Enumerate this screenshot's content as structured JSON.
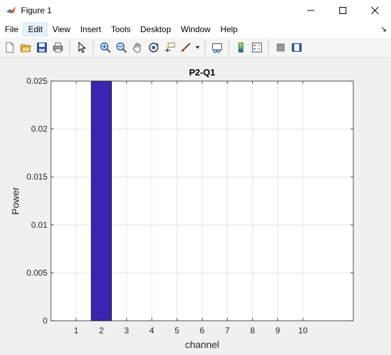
{
  "window": {
    "title": "Figure 1",
    "minimize_icon": "minimize-icon",
    "maximize_icon": "maximize-icon",
    "close_icon": "close-icon"
  },
  "menu": {
    "items": [
      "File",
      "Edit",
      "View",
      "Insert",
      "Tools",
      "Desktop",
      "Window",
      "Help"
    ],
    "active": "Edit"
  },
  "toolbar": {
    "icons": [
      "new-figure-icon",
      "open-file-icon",
      "save-icon",
      "print-icon",
      "pointer-icon",
      "zoom-in-icon",
      "zoom-out-icon",
      "pan-icon",
      "rotate-3d-icon",
      "data-cursor-icon",
      "brush-icon",
      "link-plot-icon",
      "colorbar-icon",
      "legend-icon",
      "hide-plot-tools-icon",
      "show-plot-tools-icon"
    ]
  },
  "chart_data": {
    "type": "bar",
    "title": "P2-Q1",
    "xlabel": "channel",
    "ylabel": "Power",
    "categories": [
      1,
      2,
      3,
      4,
      5,
      6,
      7,
      8,
      9,
      10
    ],
    "x_tick_labels": [
      "1",
      "2",
      "3",
      "4",
      "5",
      "6",
      "7",
      "8",
      "9",
      "10"
    ],
    "values": [
      0,
      0.025,
      0,
      0,
      0,
      0,
      0,
      0,
      0,
      0
    ],
    "xlim": [
      0,
      12
    ],
    "ylim": [
      0,
      0.025
    ],
    "y_ticks": [
      0,
      0.005,
      0.01,
      0.015,
      0.02,
      0.025
    ],
    "y_tick_labels": [
      "0",
      "0.005",
      "0.01",
      "0.015",
      "0.02",
      "0.025"
    ],
    "bar_color": "#3c24b0",
    "grid": true
  }
}
